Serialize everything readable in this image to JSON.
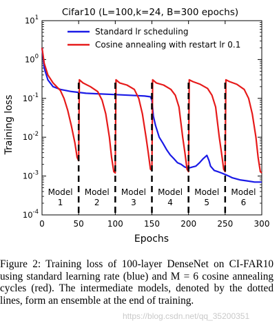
{
  "chart_data": {
    "type": "line",
    "title": "Cifar10 (L=100,k=24, B=300 epochs)",
    "xlabel": "Epochs",
    "ylabel": "Training loss",
    "xlim": [
      0,
      300
    ],
    "ylim": [
      0.0001,
      10
    ],
    "yscale": "log",
    "xticks": [
      "0",
      "50",
      "100",
      "150",
      "200",
      "250",
      "300"
    ],
    "yticks": [
      {
        "base": "10",
        "exp": "1",
        "value": 10
      },
      {
        "base": "10",
        "exp": "0",
        "value": 1
      },
      {
        "base": "10",
        "exp": "-1",
        "value": 0.1
      },
      {
        "base": "10",
        "exp": "-2",
        "value": 0.01
      },
      {
        "base": "10",
        "exp": "-3",
        "value": 0.001
      },
      {
        "base": "10",
        "exp": "-4",
        "value": 0.0001
      }
    ],
    "legend_position": "top-right",
    "series": [
      {
        "name": "Standard lr scheduling",
        "color": "#1a1ae6",
        "points": [
          [
            0,
            2.0
          ],
          [
            3,
            0.6
          ],
          [
            8,
            0.3
          ],
          [
            15,
            0.2
          ],
          [
            25,
            0.17
          ],
          [
            40,
            0.15
          ],
          [
            60,
            0.135
          ],
          [
            80,
            0.13
          ],
          [
            100,
            0.125
          ],
          [
            120,
            0.12
          ],
          [
            140,
            0.115
          ],
          [
            148,
            0.11
          ],
          [
            150,
            0.09
          ],
          [
            152,
            0.035
          ],
          [
            155,
            0.02
          ],
          [
            160,
            0.01
          ],
          [
            165,
            0.007
          ],
          [
            170,
            0.0048
          ],
          [
            175,
            0.0035
          ],
          [
            180,
            0.0028
          ],
          [
            185,
            0.0022
          ],
          [
            190,
            0.002
          ],
          [
            195,
            0.0017
          ],
          [
            200,
            0.0016
          ],
          [
            205,
            0.0017
          ],
          [
            210,
            0.0018
          ],
          [
            215,
            0.0022
          ],
          [
            220,
            0.0028
          ],
          [
            225,
            0.0034
          ],
          [
            228,
            0.0025
          ],
          [
            230,
            0.0018
          ],
          [
            235,
            0.0014
          ],
          [
            240,
            0.0013
          ],
          [
            245,
            0.0012
          ],
          [
            250,
            0.0011
          ],
          [
            255,
            0.001
          ],
          [
            260,
            0.0009
          ],
          [
            270,
            0.0008
          ],
          [
            280,
            0.00075
          ],
          [
            290,
            0.0007
          ],
          [
            300,
            0.0007
          ]
        ]
      },
      {
        "name": "Cosine annealing with restart lr 0.1",
        "color": "#e61a1a",
        "points": [
          [
            0,
            2.0
          ],
          [
            3,
            0.8
          ],
          [
            8,
            0.4
          ],
          [
            15,
            0.25
          ],
          [
            25,
            0.16
          ],
          [
            30,
            0.1
          ],
          [
            35,
            0.05
          ],
          [
            40,
            0.02
          ],
          [
            45,
            0.007
          ],
          [
            48,
            0.003
          ],
          [
            50,
            0.0025
          ],
          [
            51,
            0.3
          ],
          [
            56,
            0.25
          ],
          [
            66,
            0.2
          ],
          [
            76,
            0.15
          ],
          [
            82,
            0.09
          ],
          [
            87,
            0.04
          ],
          [
            92,
            0.01
          ],
          [
            95,
            0.003
          ],
          [
            98,
            0.0013
          ],
          [
            100,
            0.0012
          ],
          [
            101,
            0.3
          ],
          [
            106,
            0.25
          ],
          [
            116,
            0.22
          ],
          [
            126,
            0.17
          ],
          [
            132,
            0.1
          ],
          [
            137,
            0.04
          ],
          [
            142,
            0.01
          ],
          [
            145,
            0.004
          ],
          [
            148,
            0.0015
          ],
          [
            150,
            0.0014
          ],
          [
            151,
            0.3
          ],
          [
            156,
            0.25
          ],
          [
            166,
            0.22
          ],
          [
            176,
            0.17
          ],
          [
            182,
            0.12
          ],
          [
            187,
            0.06
          ],
          [
            192,
            0.01
          ],
          [
            195,
            0.004
          ],
          [
            198,
            0.0015
          ],
          [
            200,
            0.0013
          ],
          [
            201,
            0.3
          ],
          [
            206,
            0.27
          ],
          [
            216,
            0.23
          ],
          [
            226,
            0.18
          ],
          [
            232,
            0.12
          ],
          [
            237,
            0.06
          ],
          [
            242,
            0.01
          ],
          [
            245,
            0.004
          ],
          [
            248,
            0.0015
          ],
          [
            250,
            0.0013
          ],
          [
            251,
            0.3
          ],
          [
            256,
            0.27
          ],
          [
            266,
            0.23
          ],
          [
            276,
            0.17
          ],
          [
            282,
            0.1
          ],
          [
            287,
            0.04
          ],
          [
            292,
            0.01
          ],
          [
            295,
            0.003
          ],
          [
            298,
            0.0013
          ],
          [
            300,
            0.0012
          ]
        ]
      }
    ],
    "restart_lines_x": [
      50,
      100,
      150,
      200,
      250
    ],
    "model_labels": [
      {
        "line1": "Model",
        "line2": "1",
        "x": 25
      },
      {
        "line1": "Model",
        "line2": "2",
        "x": 75
      },
      {
        "line1": "Model",
        "line2": "3",
        "x": 125
      },
      {
        "line1": "Model",
        "line2": "4",
        "x": 175
      },
      {
        "line1": "Model",
        "line2": "5",
        "x": 225
      },
      {
        "line1": "Model",
        "line2": "6",
        "x": 275
      }
    ]
  },
  "caption": {
    "figure_label": "Figure 2:",
    "text": " Training loss of 100-layer DenseNet on CI-FAR10 using standard learning rate (blue) and M = 6 cosine annealing cycles (red). The intermediate models, denoted by the dotted lines, form an ensemble at the end of training."
  },
  "watermark": "https://blog.csdn.net/qq_35200351"
}
